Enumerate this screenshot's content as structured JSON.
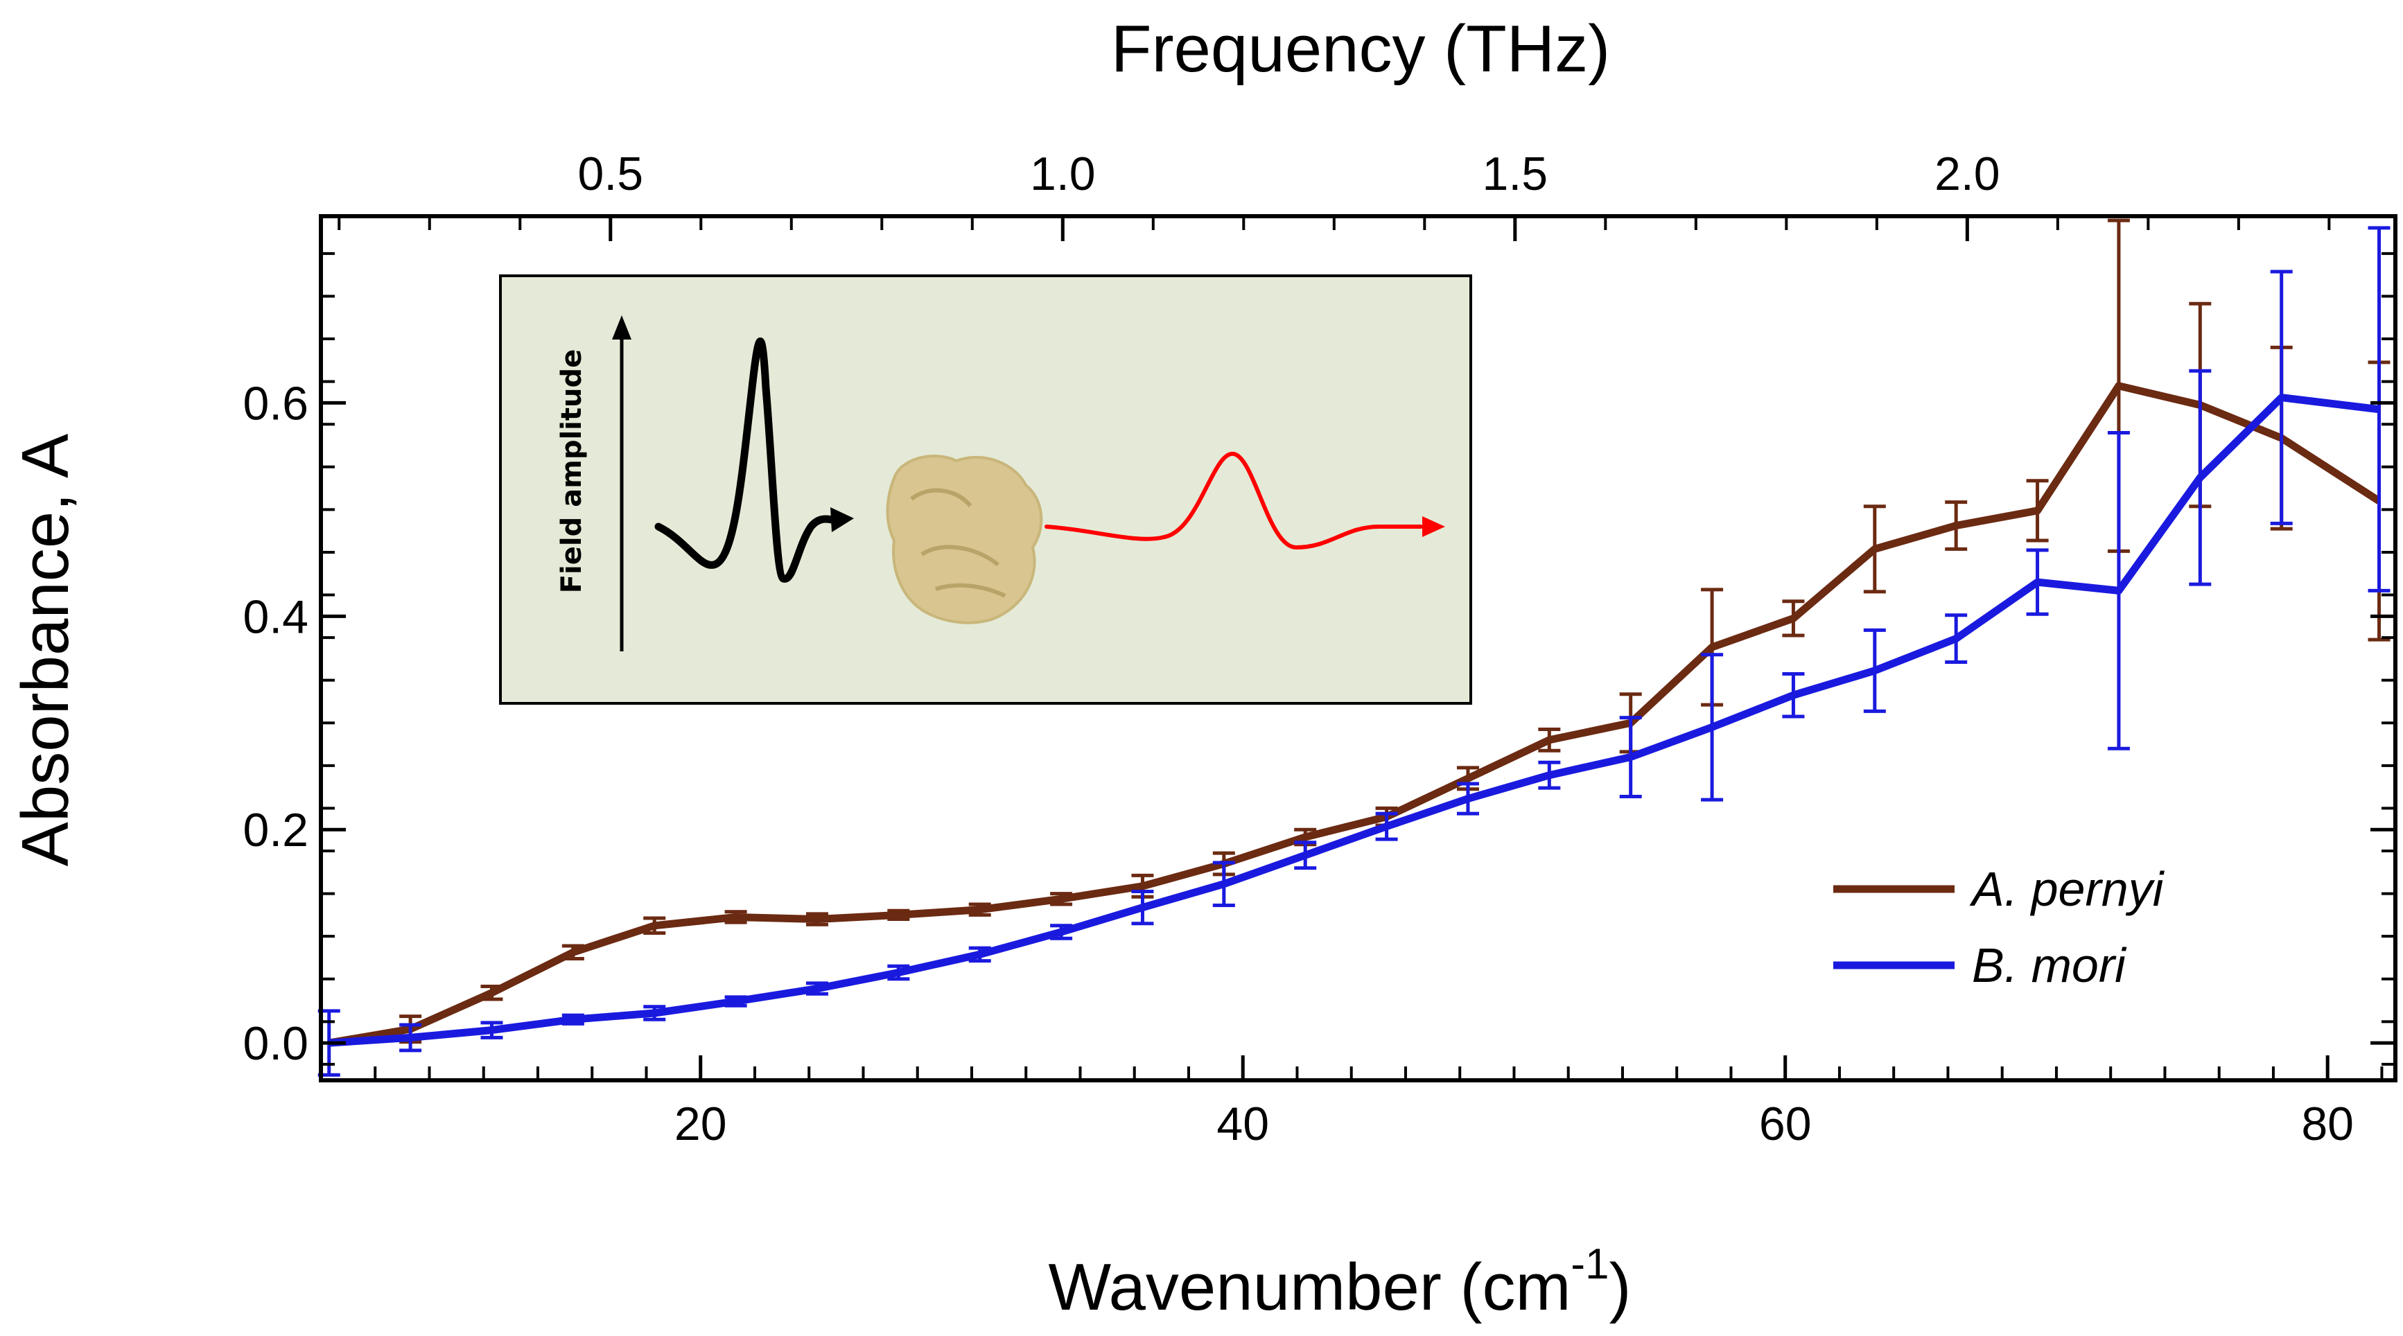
{
  "chart_data": {
    "type": "line",
    "title": "",
    "xlabel": "Wavenumber (cm",
    "xlabel_sup": "-1",
    "xlabel_close": ")",
    "x2label": "Frequency (THz)",
    "ylabel": "Absorbance, A",
    "xlim": [
      6.0,
      82.5
    ],
    "ylim": [
      -0.035,
      0.775
    ],
    "x_ticks": [
      20,
      40,
      60,
      80
    ],
    "x_tick_labels": [
      "20",
      "40",
      "60",
      "80"
    ],
    "x2_ticks_thz": [
      0.5,
      1.0,
      1.5,
      2.0
    ],
    "x2_tick_labels": [
      "0.5",
      "1.0",
      "1.5",
      "2.0"
    ],
    "y_ticks": [
      0.0,
      0.2,
      0.4,
      0.6
    ],
    "y_tick_labels": [
      "0.0",
      "0.2",
      "0.4",
      "0.6"
    ],
    "legend_position": "bottom-right",
    "series": [
      {
        "name": "A. pernyi",
        "color": "#6b2a12",
        "x": [
          6.3,
          9.3,
          12.3,
          15.3,
          18.3,
          21.3,
          24.3,
          27.3,
          30.3,
          33.3,
          36.3,
          39.3,
          42.3,
          45.3,
          48.3,
          51.3,
          54.3,
          57.3,
          60.3,
          63.3,
          66.3,
          69.3,
          72.3,
          75.3,
          78.3,
          81.9
        ],
        "values": [
          0.0,
          0.013,
          0.047,
          0.085,
          0.11,
          0.118,
          0.116,
          0.12,
          0.125,
          0.135,
          0.147,
          0.168,
          0.193,
          0.212,
          0.248,
          0.284,
          0.3,
          0.371,
          0.398,
          0.463,
          0.485,
          0.499,
          0.616,
          0.598,
          0.567,
          0.508
        ],
        "errors": [
          0.0,
          0.012,
          0.006,
          0.006,
          0.007,
          0.005,
          0.005,
          0.004,
          0.005,
          0.005,
          0.01,
          0.01,
          0.007,
          0.008,
          0.01,
          0.01,
          0.027,
          0.054,
          0.016,
          0.04,
          0.022,
          0.028,
          0.155,
          0.095,
          0.085,
          0.13
        ]
      },
      {
        "name": "B. mori",
        "color": "#1a1adf",
        "x": [
          6.3,
          9.3,
          12.3,
          15.3,
          18.3,
          21.3,
          24.3,
          27.3,
          30.3,
          33.3,
          36.3,
          39.3,
          42.3,
          45.3,
          48.3,
          51.3,
          54.3,
          57.3,
          60.3,
          63.3,
          66.3,
          69.3,
          72.3,
          75.3,
          78.3,
          81.9
        ],
        "values": [
          0.0,
          0.005,
          0.012,
          0.022,
          0.028,
          0.039,
          0.051,
          0.066,
          0.083,
          0.104,
          0.127,
          0.149,
          0.176,
          0.203,
          0.229,
          0.251,
          0.268,
          0.296,
          0.326,
          0.349,
          0.379,
          0.432,
          0.424,
          0.53,
          0.605,
          0.594
        ],
        "errors": [
          0.03,
          0.012,
          0.007,
          0.004,
          0.006,
          0.004,
          0.005,
          0.006,
          0.006,
          0.006,
          0.015,
          0.02,
          0.012,
          0.012,
          0.014,
          0.012,
          0.037,
          0.068,
          0.02,
          0.038,
          0.022,
          0.03,
          0.148,
          0.1,
          0.118,
          0.17
        ]
      }
    ],
    "inset": {
      "label": "Field amplitude"
    }
  }
}
